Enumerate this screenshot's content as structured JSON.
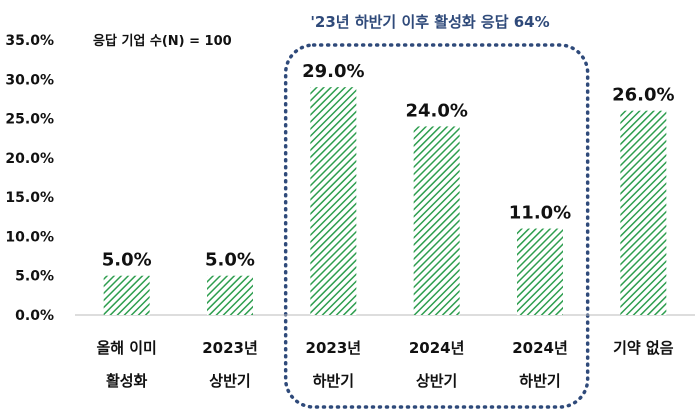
{
  "chart_data": {
    "type": "bar",
    "categories": [
      [
        "올해 이미",
        "활성화"
      ],
      [
        "2023년",
        "상반기"
      ],
      [
        "2023년",
        "하반기"
      ],
      [
        "2024년",
        "상반기"
      ],
      [
        "2024년",
        "하반기"
      ],
      [
        "기약 없음",
        ""
      ]
    ],
    "values": [
      5.0,
      5.0,
      29.0,
      24.0,
      11.0,
      26.0
    ],
    "value_labels": [
      "5.0%",
      "5.0%",
      "29.0%",
      "24.0%",
      "11.0%",
      "26.0%"
    ],
    "ylim": [
      0,
      35
    ],
    "yticks": [
      "0.0%",
      "5.0%",
      "10.0%",
      "15.0%",
      "20.0%",
      "25.0%",
      "30.0%",
      "35.0%"
    ],
    "ytick_values": [
      0,
      5,
      10,
      15,
      20,
      25,
      30,
      35
    ],
    "grid": false,
    "sample_note": "응답 기업 수(N) = 100",
    "highlight": {
      "label": "'23년 하반기 이후 활성화 응답 64%",
      "from_index": 2,
      "to_index": 4
    },
    "bar_color": "#2e9e4f",
    "highlight_color": "#2f4a7a"
  }
}
